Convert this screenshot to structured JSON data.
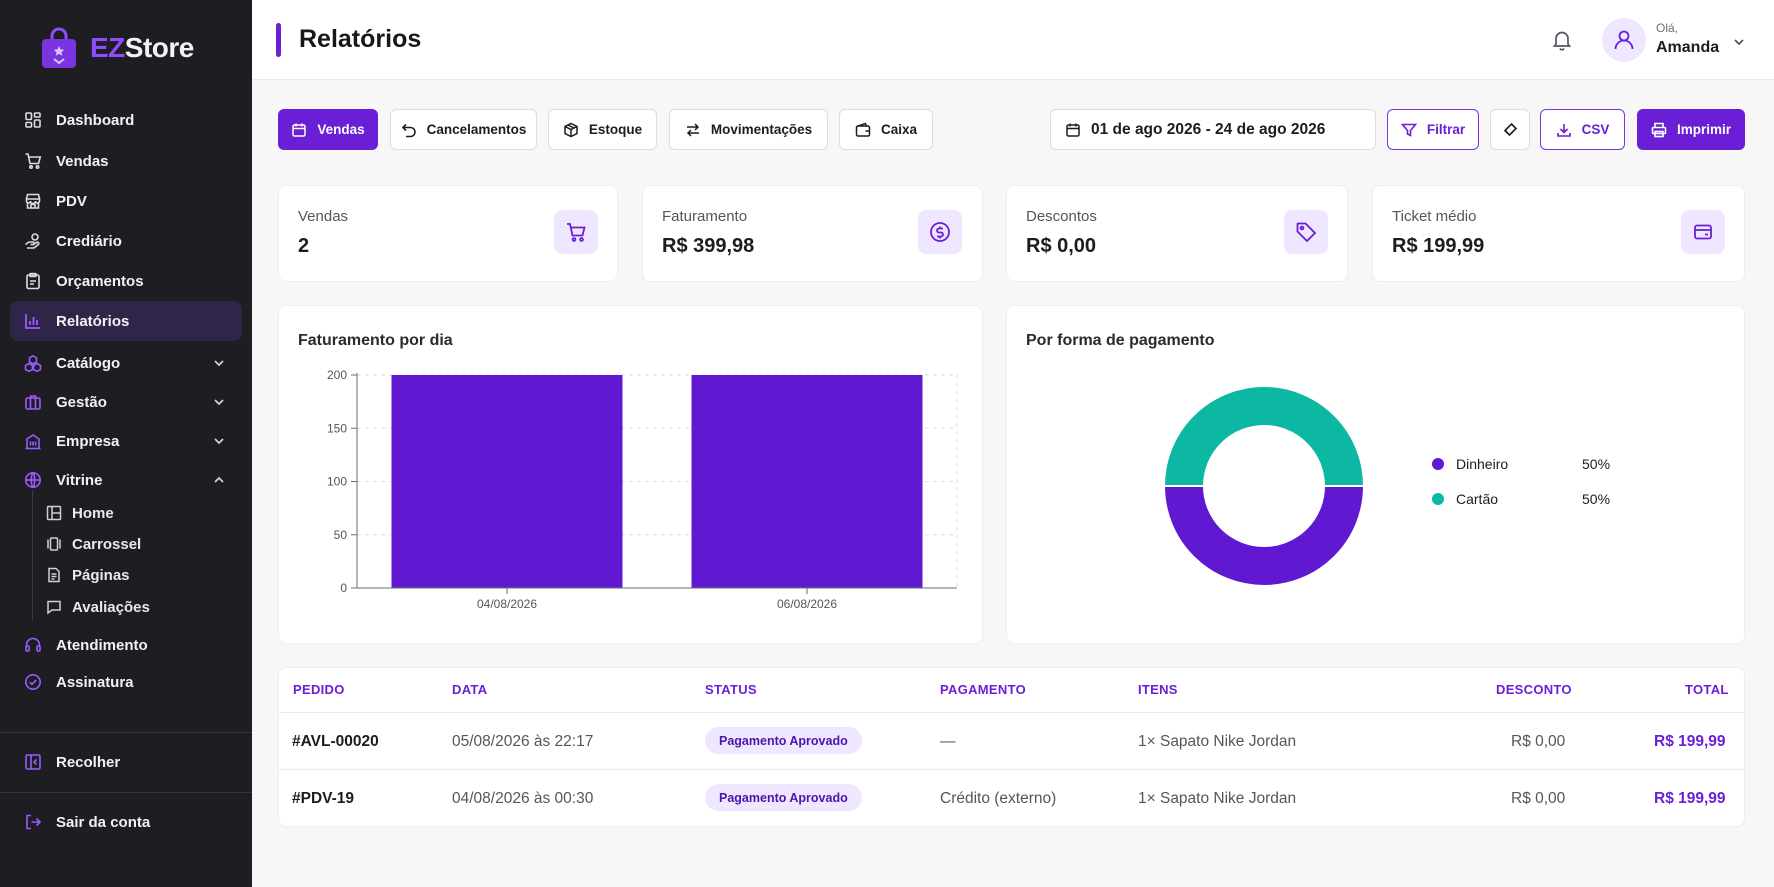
{
  "brand": {
    "prefix": "EZ",
    "suffix": "Store",
    "accent": "#6a1fd6"
  },
  "sidebar": {
    "items": [
      {
        "label": "Dashboard",
        "icon": "grid-icon"
      },
      {
        "label": "Vendas",
        "icon": "cart-icon"
      },
      {
        "label": "PDV",
        "icon": "store-icon"
      },
      {
        "label": "Crediário",
        "icon": "hand-coin-icon"
      },
      {
        "label": "Orçamentos",
        "icon": "clipboard-icon"
      },
      {
        "label": "Relatórios",
        "icon": "bar-chart-icon",
        "active": true
      },
      {
        "label": "Catálogo",
        "icon": "boxes-icon",
        "expandable": true
      },
      {
        "label": "Gestão",
        "icon": "briefcase-icon",
        "expandable": true
      },
      {
        "label": "Empresa",
        "icon": "building-icon",
        "expandable": true
      },
      {
        "label": "Vitrine",
        "icon": "globe-icon",
        "expanded": true
      }
    ],
    "vitrine_sub": [
      {
        "label": "Home",
        "icon": "layout-icon"
      },
      {
        "label": "Carrossel",
        "icon": "carousel-icon"
      },
      {
        "label": "Páginas",
        "icon": "page-icon"
      },
      {
        "label": "Avaliações",
        "icon": "comment-icon"
      }
    ],
    "bottom_items": [
      {
        "label": "Atendimento",
        "icon": "headset-icon"
      },
      {
        "label": "Assinatura",
        "icon": "badge-check-icon"
      }
    ],
    "collapse_label": "Recolher",
    "logout_label": "Sair da conta"
  },
  "header": {
    "title": "Relatórios",
    "greeting": "Olá,",
    "user_name": "Amanda"
  },
  "toolbar": {
    "tabs": [
      {
        "label": "Vendas",
        "icon": "calendar-icon",
        "active": true
      },
      {
        "label": "Cancelamentos",
        "icon": "undo-icon"
      },
      {
        "label": "Estoque",
        "icon": "box-icon"
      },
      {
        "label": "Movimentações",
        "icon": "arrows-icon"
      },
      {
        "label": "Caixa",
        "icon": "wallet-icon"
      }
    ],
    "date_range": "01 de ago 2026 - 24 de ago 2026",
    "filter_label": "Filtrar",
    "csv_label": "CSV",
    "print_label": "Imprimir"
  },
  "stats": [
    {
      "label": "Vendas",
      "value": "2",
      "icon": "cart-icon"
    },
    {
      "label": "Faturamento",
      "value": "R$ 399,98",
      "icon": "dollar-icon"
    },
    {
      "label": "Descontos",
      "value": "R$ 0,00",
      "icon": "tag-icon"
    },
    {
      "label": "Ticket médio",
      "value": "R$ 199,99",
      "icon": "wallet-icon"
    }
  ],
  "revenue_panel": {
    "title": "Faturamento por dia"
  },
  "payment_panel": {
    "title": "Por forma de pagamento"
  },
  "chart_data": [
    {
      "type": "bar",
      "title": "Faturamento por dia",
      "categories": [
        "04/08/2026",
        "06/08/2026"
      ],
      "values": [
        199.99,
        199.99
      ],
      "ylim": [
        0,
        200
      ],
      "yticks": [
        0,
        50,
        100,
        150,
        200
      ],
      "grid": true,
      "color": "#6018d0"
    },
    {
      "type": "pie",
      "title": "Por forma de pagamento",
      "donut": true,
      "slices": [
        {
          "label": "Dinheiro",
          "value": 50,
          "pct_label": "50%",
          "color": "#6018d0"
        },
        {
          "label": "Cartão",
          "value": 50,
          "pct_label": "50%",
          "color": "#0db8a3"
        }
      ],
      "legend": "right"
    }
  ],
  "table": {
    "headers": [
      "PEDIDO",
      "DATA",
      "STATUS",
      "PAGAMENTO",
      "ITENS",
      "DESCONTO",
      "TOTAL"
    ],
    "rows": [
      {
        "pedido": "#AVL-00020",
        "data": "05/08/2026 às 22:17",
        "status": "Pagamento Aprovado",
        "pagamento": "—",
        "itens": "1× Sapato Nike Jordan",
        "desconto": "R$ 0,00",
        "total": "R$ 199,99"
      },
      {
        "pedido": "#PDV-19",
        "data": "04/08/2026 às 00:30",
        "status": "Pagamento Aprovado",
        "pagamento": "Crédito (externo)",
        "itens": "1× Sapato Nike Jordan",
        "desconto": "R$ 0,00",
        "total": "R$ 199,99"
      }
    ]
  }
}
